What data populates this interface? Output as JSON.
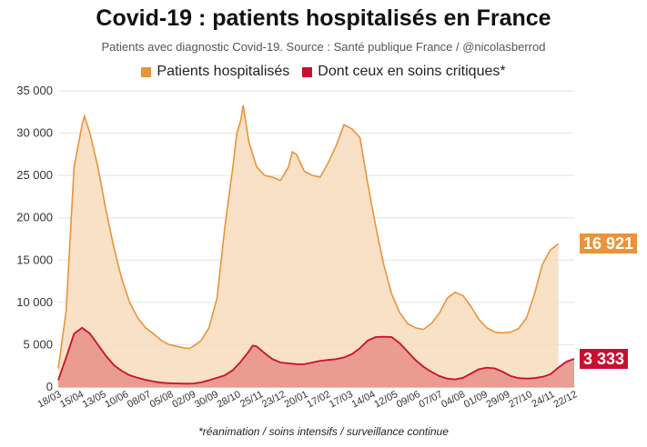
{
  "title": "Covid-19 : patients hospitalisés en France",
  "subtitle": "Patients avec diagnostic Covid-19. Source : Santé publique France / @nicolasberrod",
  "footnote": "*réanimation / soins intensifs / surveillance continue",
  "colors": {
    "hospitalises_line": "#e8943a",
    "hospitalises_fill": "#f7dcbd",
    "critiques_line": "#c8102e",
    "critiques_fill": "#e8958a",
    "grid": "#e2e2e2"
  },
  "badges": {
    "hospitalises": "16 921",
    "critiques": "3 333"
  },
  "chart_data": {
    "type": "area",
    "title": "Covid-19 : patients hospitalisés en France",
    "subtitle": "Patients avec diagnostic Covid-19. Source : Santé publique France / @nicolasberrod",
    "ylim": [
      0,
      35000
    ],
    "yticks": [
      0,
      5000,
      10000,
      15000,
      20000,
      25000,
      30000,
      35000
    ],
    "ytick_labels": [
      "0",
      "5 000",
      "10 000",
      "15 000",
      "20 000",
      "25 000",
      "30 000",
      "35 000"
    ],
    "xtick_labels": [
      "18/03",
      "15/04",
      "13/05",
      "10/06",
      "08/07",
      "05/08",
      "02/09",
      "30/09",
      "28/10",
      "25/11",
      "23/12",
      "20/01",
      "17/02",
      "17/03",
      "14/04",
      "12/05",
      "09/06",
      "07/07",
      "04/08",
      "01/09",
      "29/09",
      "27/10",
      "24/11",
      "22/12"
    ],
    "grid": true,
    "legend": "top-center",
    "series": [
      {
        "name": "Patients hospitalisés",
        "points": [
          [
            0,
            2200
          ],
          [
            1,
            9000
          ],
          [
            2,
            26000
          ],
          [
            3,
            31000
          ],
          [
            3.3,
            32000
          ],
          [
            4,
            30000
          ],
          [
            5,
            26000
          ],
          [
            6,
            21000
          ],
          [
            7,
            16500
          ],
          [
            8,
            12800
          ],
          [
            9,
            10000
          ],
          [
            10,
            8200
          ],
          [
            11,
            7000
          ],
          [
            12,
            6300
          ],
          [
            13,
            5500
          ],
          [
            14,
            5000
          ],
          [
            15,
            4800
          ],
          [
            16,
            4600
          ],
          [
            16.5,
            4550
          ],
          [
            17,
            4800
          ],
          [
            18,
            5500
          ],
          [
            19,
            7000
          ],
          [
            20,
            10500
          ],
          [
            21,
            19000
          ],
          [
            22,
            26000
          ],
          [
            22.5,
            30000
          ],
          [
            23,
            31500
          ],
          [
            23.3,
            33300
          ],
          [
            24,
            29000
          ],
          [
            25,
            26000
          ],
          [
            26,
            25000
          ],
          [
            27,
            24800
          ],
          [
            28,
            24400
          ],
          [
            29,
            26000
          ],
          [
            29.5,
            27800
          ],
          [
            30,
            27500
          ],
          [
            31,
            25500
          ],
          [
            32,
            25000
          ],
          [
            33,
            24800
          ],
          [
            34,
            26500
          ],
          [
            35,
            28500
          ],
          [
            36,
            31000
          ],
          [
            37,
            30500
          ],
          [
            38,
            29500
          ],
          [
            39,
            24000
          ],
          [
            40,
            19000
          ],
          [
            41,
            14500
          ],
          [
            42,
            11000
          ],
          [
            43,
            8800
          ],
          [
            44,
            7500
          ],
          [
            45,
            7000
          ],
          [
            46,
            6800
          ],
          [
            47,
            7500
          ],
          [
            48,
            8700
          ],
          [
            49,
            10500
          ],
          [
            50,
            11200
          ],
          [
            51,
            10800
          ],
          [
            52,
            9500
          ],
          [
            53,
            8000
          ],
          [
            54,
            7000
          ],
          [
            55,
            6500
          ],
          [
            56,
            6400
          ],
          [
            57,
            6500
          ],
          [
            58,
            6900
          ],
          [
            59,
            8200
          ],
          [
            60,
            11000
          ],
          [
            61,
            14500
          ],
          [
            62,
            16200
          ],
          [
            63,
            16921
          ]
        ]
      },
      {
        "name": "Dont ceux en soins critiques*",
        "points": [
          [
            0,
            800
          ],
          [
            1,
            3500
          ],
          [
            2,
            6300
          ],
          [
            3,
            7000
          ],
          [
            4,
            6300
          ],
          [
            5,
            5000
          ],
          [
            6,
            3700
          ],
          [
            7,
            2600
          ],
          [
            8,
            1900
          ],
          [
            9,
            1400
          ],
          [
            10,
            1100
          ],
          [
            11,
            850
          ],
          [
            12,
            650
          ],
          [
            13,
            520
          ],
          [
            14,
            450
          ],
          [
            15,
            430
          ],
          [
            16,
            400
          ],
          [
            17,
            420
          ],
          [
            18,
            550
          ],
          [
            19,
            800
          ],
          [
            20,
            1100
          ],
          [
            21,
            1400
          ],
          [
            22,
            2000
          ],
          [
            23,
            3000
          ],
          [
            24,
            4200
          ],
          [
            24.5,
            4900
          ],
          [
            25,
            4800
          ],
          [
            26,
            4000
          ],
          [
            27,
            3300
          ],
          [
            28,
            2900
          ],
          [
            29,
            2800
          ],
          [
            30,
            2700
          ],
          [
            31,
            2700
          ],
          [
            32,
            2900
          ],
          [
            33,
            3100
          ],
          [
            34,
            3200
          ],
          [
            35,
            3300
          ],
          [
            36,
            3500
          ],
          [
            37,
            3900
          ],
          [
            38,
            4600
          ],
          [
            39,
            5500
          ],
          [
            40,
            5900
          ],
          [
            41,
            5950
          ],
          [
            42,
            5900
          ],
          [
            43,
            5200
          ],
          [
            44,
            4200
          ],
          [
            45,
            3200
          ],
          [
            46,
            2400
          ],
          [
            47,
            1800
          ],
          [
            48,
            1300
          ],
          [
            49,
            1000
          ],
          [
            50,
            900
          ],
          [
            51,
            1100
          ],
          [
            52,
            1600
          ],
          [
            53,
            2100
          ],
          [
            54,
            2300
          ],
          [
            55,
            2200
          ],
          [
            56,
            1800
          ],
          [
            57,
            1300
          ],
          [
            58,
            1050
          ],
          [
            59,
            1000
          ],
          [
            60,
            1050
          ],
          [
            61,
            1200
          ],
          [
            62,
            1500
          ],
          [
            63,
            2300
          ],
          [
            64,
            3000
          ],
          [
            65,
            3333
          ]
        ]
      }
    ]
  }
}
